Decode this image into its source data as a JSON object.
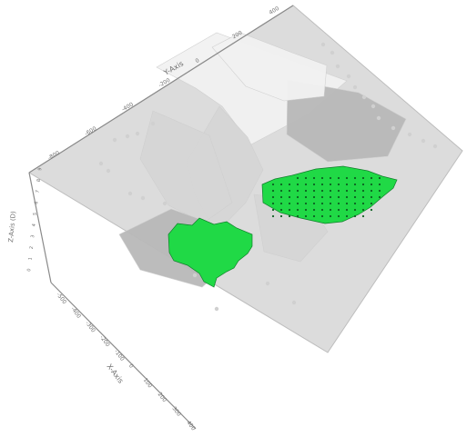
{
  "viewer": {
    "colors": {
      "background": "#ffffff",
      "plane": "#dcdcdc",
      "plane_edge": "#bdbdbd",
      "terrain_light": "#f2f2f2",
      "terrain_mid": "#d6d6d6",
      "terrain_dark": "#b9b9b9",
      "highlight": "#20d946",
      "highlight_dark": "#0f7f2a",
      "axis": "#8a8a8a",
      "axis_text": "#6f6f6f"
    },
    "axes": {
      "y_axis_title": "Y-Axis",
      "x_axis_title": "X-Axis",
      "z_axis_title": "Z-Axis (D)",
      "y_ticks": [
        "-800",
        "-600",
        "-400",
        "-200",
        "0",
        "200",
        "400"
      ],
      "x_ticks": [
        "-500",
        "-400",
        "-300",
        "-200",
        "-100",
        "0",
        "100",
        "200",
        "300",
        "400"
      ],
      "z_ticks": [
        "0",
        "1",
        "2",
        "3",
        "4",
        "5",
        "6",
        "7",
        "8",
        "9"
      ]
    }
  }
}
